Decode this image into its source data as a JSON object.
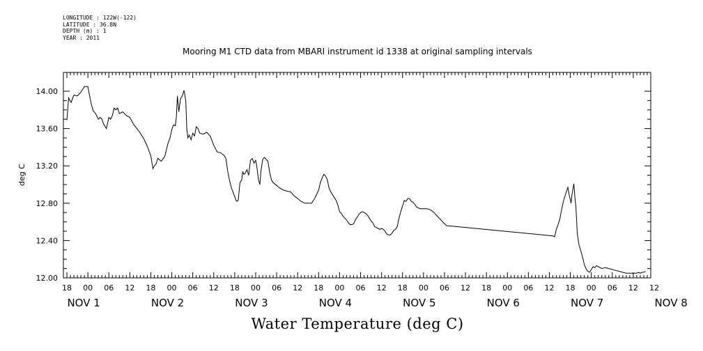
{
  "header": {
    "longitude": "LONGITUDE : 122W(-122)",
    "latitude": "LATITUDE : 36.8N",
    "depth": "DEPTH (m) : 1",
    "year": "YEAR : 2011"
  },
  "chart_data": {
    "type": "line",
    "title": "Mooring M1 CTD data from MBARI instrument id 1338 at original sampling intervals",
    "xlabel": "Water Temperature (deg C)",
    "ylabel": "deg C",
    "ylim": [
      12.0,
      14.0
    ],
    "xlim_hours": [
      -7,
      161
    ],
    "y_tick_labels": [
      "12.00",
      "12.40",
      "12.80",
      "13.20",
      "13.60",
      "14.00"
    ],
    "x_hour_labels": [
      "18",
      "00",
      "06",
      "12",
      "18",
      "00",
      "06",
      "12",
      "18",
      "00",
      "06",
      "12",
      "18",
      "00",
      "06",
      "12",
      "18",
      "00",
      "06",
      "12",
      "18",
      "00",
      "06",
      "12",
      "18",
      "00",
      "06",
      "12",
      "12"
    ],
    "x_day_labels": [
      "NOV  1",
      "NOV  2",
      "NOV  3",
      "NOV  4",
      "NOV  5",
      "NOV  6",
      "NOV  7",
      "NOV  8"
    ],
    "grid": false,
    "series": [
      {
        "name": "",
        "color": "#000000",
        "points": [
          [
            -6,
            13.69
          ],
          [
            -5.5,
            13.93
          ],
          [
            -4.8,
            13.88
          ],
          [
            -4,
            13.96
          ],
          [
            -3,
            13.95
          ],
          [
            -2,
            13.99
          ],
          [
            -1,
            14.05
          ],
          [
            0,
            14.05
          ],
          [
            0.5,
            13.95
          ],
          [
            1,
            13.86
          ],
          [
            1.5,
            13.79
          ],
          [
            2.2,
            13.76
          ],
          [
            3,
            13.7
          ],
          [
            3.5,
            13.72
          ],
          [
            4,
            13.7
          ],
          [
            4.5,
            13.65
          ],
          [
            5.3,
            13.6
          ],
          [
            6,
            13.72
          ],
          [
            6.5,
            13.7
          ],
          [
            7,
            13.74
          ],
          [
            7.5,
            13.82
          ],
          [
            8,
            13.8
          ],
          [
            8.5,
            13.82
          ],
          [
            9,
            13.76
          ],
          [
            10,
            13.78
          ],
          [
            11,
            13.74
          ],
          [
            12,
            13.72
          ],
          [
            13,
            13.65
          ],
          [
            14,
            13.6
          ],
          [
            15,
            13.55
          ],
          [
            16,
            13.49
          ],
          [
            17,
            13.41
          ],
          [
            18,
            13.31
          ],
          [
            18.6,
            13.17
          ],
          [
            19,
            13.2
          ],
          [
            19.5,
            13.22
          ],
          [
            20,
            13.28
          ],
          [
            21,
            13.25
          ],
          [
            22,
            13.3
          ],
          [
            22.5,
            13.38
          ],
          [
            23,
            13.45
          ],
          [
            23.5,
            13.5
          ],
          [
            24,
            13.59
          ],
          [
            24.5,
            13.64
          ],
          [
            25,
            13.63
          ],
          [
            25.3,
            13.72
          ],
          [
            25.6,
            13.95
          ],
          [
            26,
            13.78
          ],
          [
            26.5,
            13.92
          ],
          [
            27,
            13.95
          ],
          [
            27.5,
            14.01
          ],
          [
            28,
            13.9
          ],
          [
            28.3,
            13.6
          ],
          [
            28.6,
            13.5
          ],
          [
            29,
            13.53
          ],
          [
            29.5,
            13.48
          ],
          [
            30,
            13.55
          ],
          [
            30.5,
            13.52
          ],
          [
            31,
            13.62
          ],
          [
            31.5,
            13.6
          ],
          [
            32,
            13.55
          ],
          [
            33,
            13.54
          ],
          [
            34,
            13.56
          ],
          [
            35,
            13.52
          ],
          [
            36,
            13.42
          ],
          [
            37,
            13.35
          ],
          [
            38,
            13.34
          ],
          [
            39,
            13.31
          ],
          [
            39.5,
            13.28
          ],
          [
            40,
            13.14
          ],
          [
            40.5,
            13.05
          ],
          [
            41,
            12.97
          ],
          [
            41.5,
            12.92
          ],
          [
            42,
            12.87
          ],
          [
            42.5,
            12.82
          ],
          [
            43,
            12.83
          ],
          [
            43.5,
            13.02
          ],
          [
            44,
            13.05
          ],
          [
            44.3,
            13.14
          ],
          [
            44.6,
            13.11
          ],
          [
            45,
            13.12
          ],
          [
            45.5,
            13.16
          ],
          [
            46,
            13.1
          ],
          [
            46.5,
            13.26
          ],
          [
            47,
            13.28
          ],
          [
            47.5,
            13.23
          ],
          [
            48,
            13.26
          ],
          [
            48.3,
            13.2
          ],
          [
            48.8,
            13.05
          ],
          [
            49.2,
            13.0
          ],
          [
            49.5,
            13.14
          ],
          [
            50,
            13.27
          ],
          [
            50.5,
            13.29
          ],
          [
            51,
            13.27
          ],
          [
            51.5,
            13.25
          ],
          [
            52,
            13.13
          ],
          [
            52.5,
            13.05
          ],
          [
            53,
            13.02
          ],
          [
            54,
            12.99
          ],
          [
            55,
            12.96
          ],
          [
            56,
            12.94
          ],
          [
            57,
            12.93
          ],
          [
            58,
            12.92
          ],
          [
            59,
            12.88
          ],
          [
            60,
            12.85
          ],
          [
            61,
            12.82
          ],
          [
            62,
            12.8
          ],
          [
            63,
            12.8
          ],
          [
            64,
            12.8
          ],
          [
            65,
            12.86
          ],
          [
            66,
            12.94
          ],
          [
            66.5,
            13.02
          ],
          [
            67,
            13.07
          ],
          [
            67.5,
            13.11
          ],
          [
            68,
            13.09
          ],
          [
            68.5,
            13.05
          ],
          [
            69,
            12.96
          ],
          [
            69.5,
            12.92
          ],
          [
            70,
            12.89
          ],
          [
            71,
            12.83
          ],
          [
            71.5,
            12.78
          ],
          [
            72,
            12.71
          ],
          [
            72.5,
            12.69
          ],
          [
            73,
            12.66
          ],
          [
            73.5,
            12.64
          ],
          [
            74,
            12.62
          ],
          [
            74.5,
            12.59
          ],
          [
            75,
            12.57
          ],
          [
            75.5,
            12.57
          ],
          [
            76,
            12.58
          ],
          [
            76.5,
            12.62
          ],
          [
            77,
            12.65
          ],
          [
            77.5,
            12.68
          ],
          [
            78,
            12.7
          ],
          [
            78.5,
            12.71
          ],
          [
            79,
            12.7
          ],
          [
            79.5,
            12.69
          ],
          [
            80,
            12.67
          ],
          [
            80.5,
            12.64
          ],
          [
            81,
            12.61
          ],
          [
            81.5,
            12.59
          ],
          [
            82,
            12.55
          ],
          [
            82.5,
            12.54
          ],
          [
            83,
            12.53
          ],
          [
            83.5,
            12.52
          ],
          [
            84,
            12.53
          ],
          [
            84.5,
            12.52
          ],
          [
            85,
            12.5
          ],
          [
            85.5,
            12.47
          ],
          [
            86,
            12.46
          ],
          [
            86.5,
            12.46
          ],
          [
            87,
            12.48
          ],
          [
            87.5,
            12.51
          ],
          [
            88,
            12.52
          ],
          [
            88.5,
            12.55
          ],
          [
            89,
            12.64
          ],
          [
            89.5,
            12.71
          ],
          [
            90,
            12.77
          ],
          [
            90.5,
            12.83
          ],
          [
            91,
            12.82
          ],
          [
            91.5,
            12.85
          ],
          [
            92,
            12.85
          ],
          [
            92.5,
            12.82
          ],
          [
            93,
            12.81
          ],
          [
            93.5,
            12.79
          ],
          [
            94,
            12.76
          ],
          [
            95,
            12.74
          ],
          [
            96,
            12.74
          ],
          [
            97,
            12.74
          ],
          [
            98,
            12.73
          ],
          [
            99,
            12.7
          ],
          [
            100,
            12.66
          ],
          [
            100.5,
            12.64
          ],
          [
            101,
            12.62
          ],
          [
            101.5,
            12.6
          ],
          [
            102,
            12.58
          ],
          [
            102.6,
            12.56
          ],
          [
            133,
            12.45
          ],
          [
            133.5,
            12.44
          ],
          [
            134,
            12.52
          ],
          [
            134.5,
            12.57
          ],
          [
            135,
            12.63
          ],
          [
            135.5,
            12.73
          ],
          [
            136,
            12.82
          ],
          [
            136.5,
            12.88
          ],
          [
            137,
            12.94
          ],
          [
            137.3,
            12.97
          ],
          [
            137.7,
            12.88
          ],
          [
            138,
            12.84
          ],
          [
            138.2,
            12.8
          ],
          [
            138.5,
            12.9
          ],
          [
            139,
            13.01
          ],
          [
            139.3,
            12.87
          ],
          [
            139.6,
            12.76
          ],
          [
            140,
            12.47
          ],
          [
            140.5,
            12.35
          ],
          [
            141,
            12.29
          ],
          [
            141.5,
            12.22
          ],
          [
            142,
            12.14
          ],
          [
            142.5,
            12.1
          ],
          [
            143,
            12.07
          ],
          [
            143.5,
            12.06
          ],
          [
            144,
            12.09
          ],
          [
            144.5,
            12.12
          ],
          [
            145,
            12.11
          ],
          [
            145.5,
            12.13
          ],
          [
            146,
            12.12
          ],
          [
            147,
            12.1
          ],
          [
            148,
            12.11
          ],
          [
            149,
            12.1
          ],
          [
            150,
            12.09
          ],
          [
            151,
            12.08
          ],
          [
            152,
            12.07
          ],
          [
            153,
            12.06
          ],
          [
            154,
            12.05
          ],
          [
            155,
            12.05
          ],
          [
            156,
            12.05
          ],
          [
            157,
            12.05
          ],
          [
            157.5,
            12.06
          ],
          [
            158,
            12.05
          ],
          [
            158.5,
            12.06
          ],
          [
            159,
            12.06
          ],
          [
            159.5,
            12.07
          ]
        ]
      }
    ]
  }
}
